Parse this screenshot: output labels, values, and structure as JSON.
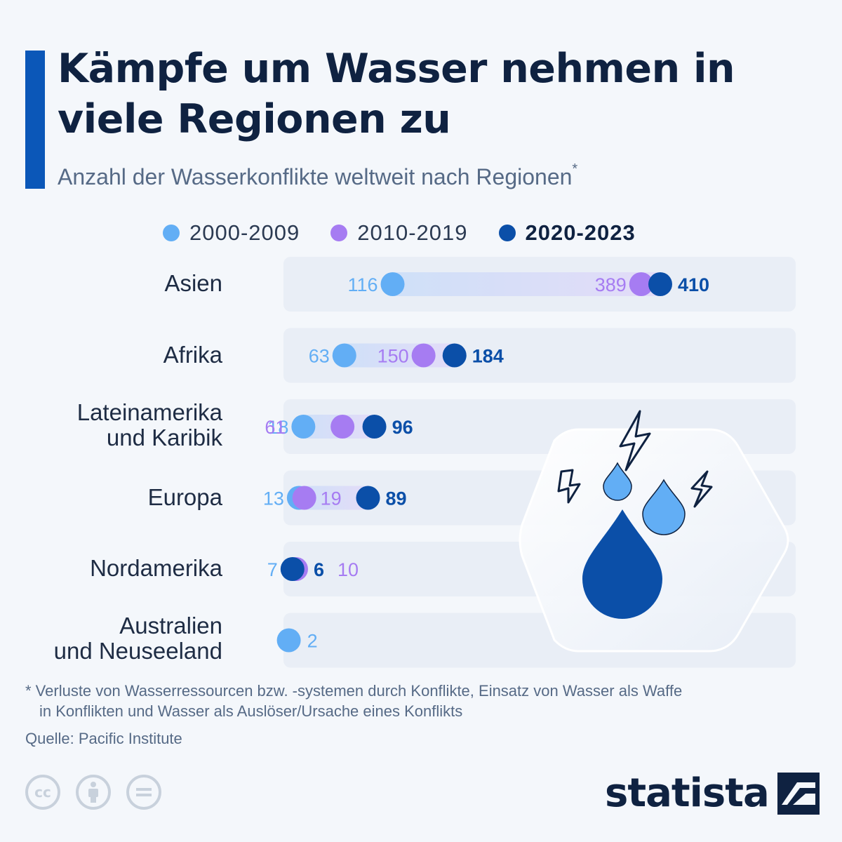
{
  "header": {
    "title": "Kämpfe um Wasser nehmen in viele Regionen zu",
    "subtitle": "Anzahl der Wasserkonflikte weltweit nach Regionen",
    "subtitle_mark": "*"
  },
  "colors": {
    "accent": "#0b57b8",
    "series_2000": "#62aef5",
    "series_2010": "#a67cf2",
    "series_2020": "#0b4fa8",
    "row_bg": "#e9eef6"
  },
  "chart_data": {
    "type": "scatter",
    "subtype": "dumbbell",
    "title": "Kämpfe um Wasser nehmen in viele Regionen zu",
    "subtitle": "Anzahl der Wasserkonflikte weltweit nach Regionen",
    "xlabel": "",
    "ylabel": "",
    "grid": false,
    "legend_position": "top",
    "xlim": [
      0,
      410
    ],
    "categories": [
      "Asien",
      "Afrika",
      "Lateinamerika und Karibik",
      "Europa",
      "Nordamerika",
      "Australien und Neuseeland"
    ],
    "series": [
      {
        "name": "2000-2009",
        "color": "#62aef5",
        "values": [
          116,
          63,
          18,
          13,
          7,
          2
        ]
      },
      {
        "name": "2010-2019",
        "color": "#a67cf2",
        "values": [
          389,
          150,
          61,
          19,
          10,
          null
        ]
      },
      {
        "name": "2020-2023",
        "color": "#0b4fa8",
        "values": [
          410,
          184,
          96,
          89,
          6,
          null
        ]
      }
    ]
  },
  "rows": [
    {
      "label_lines": [
        "Asien"
      ]
    },
    {
      "label_lines": [
        "Afrika"
      ]
    },
    {
      "label_lines": [
        "Lateinamerika",
        "und Karibik"
      ]
    },
    {
      "label_lines": [
        "Europa"
      ]
    },
    {
      "label_lines": [
        "Nordamerika"
      ]
    },
    {
      "label_lines": [
        "Australien",
        "und Neuseeland"
      ]
    }
  ],
  "footnote": {
    "line1": "* Verluste von Wasserressourcen bzw. -systemen durch Konflikte, Einsatz von Wasser als Waffe",
    "line2": "in Konflikten und Wasser als Auslöser/Ursache eines Konflikts"
  },
  "source": "Quelle: Pacific Institute",
  "license_icons": [
    "cc-icon",
    "attribution-icon",
    "no-derivatives-icon"
  ],
  "license_labels": {
    "cc": "cc"
  },
  "brand": {
    "name": "statista"
  }
}
